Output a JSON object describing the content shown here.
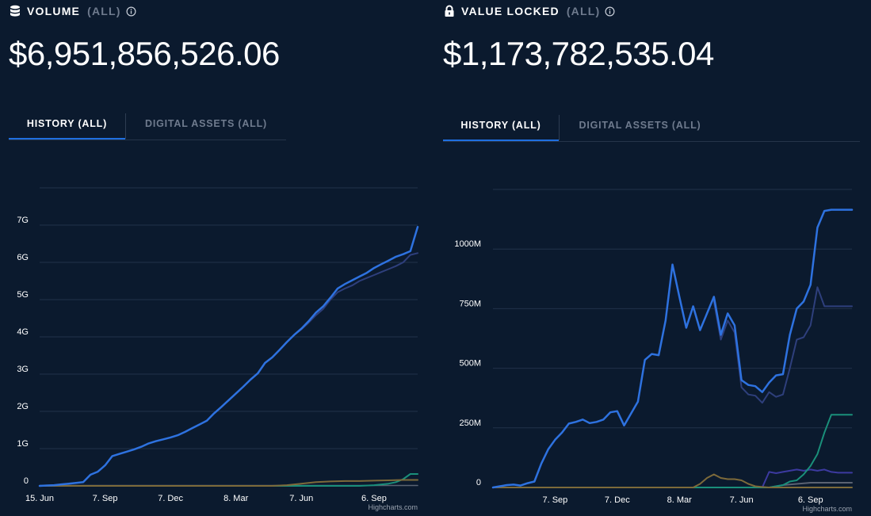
{
  "left": {
    "title": "VOLUME",
    "scope": "(ALL)",
    "icon": "database-icon",
    "value": "$6,951,856,526.06",
    "tabs": [
      {
        "label": "HISTORY (ALL)",
        "active": true
      },
      {
        "label": "DIGITAL ASSETS (ALL)",
        "active": false
      }
    ],
    "credit": "Highcharts.com"
  },
  "right": {
    "title": "VALUE LOCKED",
    "scope": "(ALL)",
    "icon": "lock-icon",
    "value": "$1,173,782,535.04",
    "tabs": [
      {
        "label": "HISTORY (ALL)",
        "active": true
      },
      {
        "label": "DIGITAL ASSETS (ALL)",
        "active": false
      }
    ],
    "credit": "Highcharts.com"
  },
  "colors": {
    "background": "#0b1a2e",
    "accent": "#1f6fe0",
    "series_main": "#2e72e0",
    "series_navy": "#2e3f7c",
    "series_gold": "#7d6a3a",
    "series_teal": "#1a8f7a",
    "series_purple": "#3c3aa0",
    "series_gray": "#5a6272",
    "grid": "#22324a"
  },
  "chart_data": [
    {
      "type": "line",
      "ylim": [
        0,
        8
      ],
      "yticks": [
        0,
        1,
        2,
        3,
        4,
        5,
        6,
        7
      ],
      "ytick_labels": [
        "0",
        "1G",
        "2G",
        "3G",
        "4G",
        "5G",
        "6G",
        "7G"
      ],
      "xlim": [
        0,
        26
      ],
      "xticks": [
        0,
        4.5,
        9,
        13.5,
        18,
        23
      ],
      "xtick_labels": [
        "15. Jun",
        "7. Sep",
        "7. Dec",
        "8. Mar",
        "7. Jun",
        "6. Sep"
      ],
      "grid": true,
      "legend": "none",
      "series": [
        {
          "color": "#2e72e0",
          "width": 2.5,
          "x": [
            0,
            0.5,
            1,
            1.5,
            2,
            2.5,
            3,
            3.5,
            4,
            4.5,
            5,
            5.5,
            6,
            6.5,
            7,
            7.5,
            8,
            8.5,
            9,
            9.5,
            10,
            10.5,
            11,
            11.5,
            12,
            12.5,
            13,
            13.5,
            14,
            14.5,
            15,
            15.5,
            16,
            16.5,
            17,
            17.5,
            18,
            18.5,
            19,
            19.5,
            20,
            20.5,
            21,
            21.5,
            22,
            22.5,
            23,
            23.5,
            24,
            24.5,
            25,
            25.5,
            26
          ],
          "values": [
            0,
            0.01,
            0.02,
            0.04,
            0.06,
            0.08,
            0.1,
            0.3,
            0.38,
            0.55,
            0.8,
            0.86,
            0.92,
            0.98,
            1.05,
            1.14,
            1.2,
            1.25,
            1.3,
            1.36,
            1.45,
            1.55,
            1.65,
            1.75,
            1.95,
            2.12,
            2.3,
            2.48,
            2.66,
            2.85,
            3.02,
            3.3,
            3.45,
            3.65,
            3.86,
            4.05,
            4.22,
            4.42,
            4.65,
            4.82,
            5.05,
            5.3,
            5.42,
            5.52,
            5.62,
            5.72,
            5.85,
            5.95,
            6.05,
            6.15,
            6.22,
            6.3,
            6.95
          ]
        },
        {
          "color": "#2e3f7c",
          "width": 2,
          "x": [
            16,
            16.5,
            17,
            17.5,
            18,
            18.5,
            19,
            19.5,
            20,
            20.5,
            21,
            21.5,
            22,
            22.5,
            23,
            23.5,
            24,
            24.5,
            25,
            25.5,
            26
          ],
          "values": [
            3.45,
            3.65,
            3.86,
            4.05,
            4.2,
            4.38,
            4.58,
            4.75,
            5.0,
            5.2,
            5.3,
            5.38,
            5.5,
            5.58,
            5.66,
            5.74,
            5.82,
            5.9,
            6.0,
            6.2,
            6.25
          ]
        },
        {
          "color": "#7d6a3a",
          "width": 2,
          "x": [
            0,
            16,
            17,
            18,
            19,
            20,
            21,
            22,
            23,
            24,
            25,
            26
          ],
          "values": [
            0,
            0,
            0.02,
            0.06,
            0.1,
            0.12,
            0.13,
            0.13,
            0.14,
            0.15,
            0.16,
            0.16
          ]
        },
        {
          "color": "#1a8f7a",
          "width": 2,
          "x": [
            0,
            22,
            23,
            24,
            24.5,
            25,
            25.5,
            26
          ],
          "values": [
            0,
            0,
            0.02,
            0.06,
            0.1,
            0.18,
            0.32,
            0.32
          ]
        },
        {
          "color": "#5a6272",
          "width": 1.5,
          "x": [
            0,
            26
          ],
          "values": [
            0.01,
            0.01
          ]
        }
      ]
    },
    {
      "type": "line",
      "ylim": [
        0,
        1250
      ],
      "yticks": [
        0,
        250,
        500,
        750,
        1000
      ],
      "ytick_labels": [
        "0",
        "250M",
        "500M",
        "750M",
        "1000M"
      ],
      "xlim": [
        0,
        26
      ],
      "xticks": [
        4.5,
        9,
        13.5,
        18,
        23
      ],
      "xtick_labels": [
        "7. Sep",
        "7. Dec",
        "8. Mar",
        "7. Jun",
        "6. Sep"
      ],
      "grid": true,
      "legend": "none",
      "series": [
        {
          "color": "#2e72e0",
          "width": 2.5,
          "x": [
            0,
            0.5,
            1,
            1.5,
            2,
            2.5,
            3,
            3.5,
            4,
            4.5,
            5,
            5.5,
            6,
            6.5,
            7,
            7.5,
            8,
            8.5,
            9,
            9.5,
            10,
            10.5,
            11,
            11.5,
            12,
            12.5,
            13,
            13.5,
            14,
            14.5,
            15,
            15.5,
            16,
            16.5,
            17,
            17.5,
            18,
            18.5,
            19,
            19.5,
            20,
            20.5,
            21,
            21.5,
            22,
            22.5,
            23,
            23.5,
            24,
            24.5,
            25,
            25.5,
            26
          ],
          "values": [
            0,
            5,
            10,
            12,
            8,
            18,
            25,
            100,
            160,
            200,
            230,
            268,
            275,
            285,
            270,
            275,
            285,
            315,
            320,
            260,
            310,
            360,
            535,
            560,
            555,
            700,
            935,
            800,
            670,
            760,
            660,
            730,
            800,
            640,
            730,
            680,
            450,
            430,
            425,
            400,
            440,
            470,
            475,
            640,
            750,
            780,
            850,
            1090,
            1160,
            1165,
            1165,
            1165,
            1165
          ]
        },
        {
          "color": "#2e3f7c",
          "width": 2,
          "x": [
            16,
            16.5,
            17,
            17.5,
            18,
            18.5,
            19,
            19.5,
            20,
            20.5,
            21,
            21.5,
            22,
            22.5,
            23,
            23.5,
            24,
            24.5,
            25,
            25.5,
            26
          ],
          "values": [
            780,
            620,
            700,
            650,
            420,
            390,
            385,
            355,
            400,
            380,
            390,
            500,
            620,
            630,
            680,
            840,
            760,
            760,
            760,
            760,
            760
          ]
        },
        {
          "color": "#7d6a3a",
          "width": 2,
          "x": [
            0,
            14.5,
            15,
            15.5,
            16,
            16.5,
            17,
            17.5,
            18,
            18.5,
            19,
            19.5,
            20,
            20.5,
            21,
            26
          ],
          "values": [
            0,
            0,
            15,
            40,
            55,
            40,
            35,
            35,
            30,
            15,
            5,
            2,
            0,
            0,
            0,
            0
          ]
        },
        {
          "color": "#1a8f7a",
          "width": 2,
          "x": [
            0,
            19,
            20,
            21,
            21.5,
            22,
            22.5,
            23,
            23.5,
            24,
            24.5,
            25,
            25.5,
            26
          ],
          "values": [
            0,
            0,
            0,
            10,
            25,
            30,
            55,
            90,
            140,
            230,
            305,
            305,
            305,
            305
          ]
        },
        {
          "color": "#3c3aa0",
          "width": 2,
          "x": [
            0,
            19.5,
            20,
            20.5,
            21,
            21.5,
            22,
            22.5,
            23,
            23.5,
            24,
            24.5,
            25,
            25.5,
            26
          ],
          "values": [
            0,
            0,
            65,
            60,
            65,
            70,
            75,
            70,
            75,
            70,
            75,
            65,
            62,
            62,
            62
          ]
        },
        {
          "color": "#5a6272",
          "width": 2,
          "x": [
            0,
            20,
            21,
            22,
            23,
            24,
            25,
            26
          ],
          "values": [
            0,
            0,
            10,
            15,
            20,
            20,
            20,
            20
          ]
        }
      ]
    }
  ]
}
